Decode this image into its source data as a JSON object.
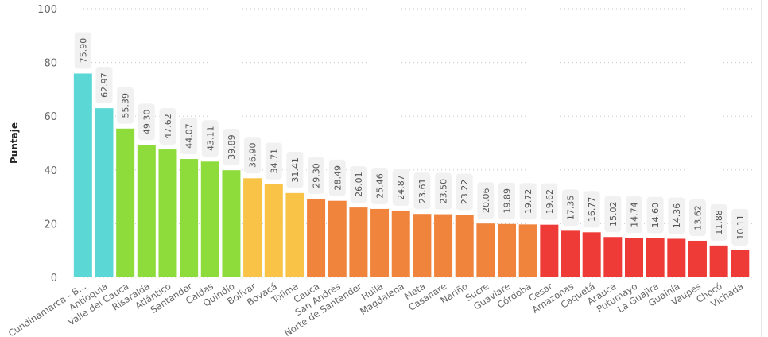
{
  "chart_data": {
    "type": "bar",
    "title": "",
    "xlabel": "",
    "ylabel": "Puntaje",
    "ylim": [
      0,
      100
    ],
    "yticks": [
      0,
      20,
      40,
      60,
      80,
      100
    ],
    "grid": true,
    "categories": [
      "Cundinamarca - B...",
      "Antioquia",
      "Valle del Cauca",
      "Risaralda",
      "Atlántico",
      "Santander",
      "Caldas",
      "Quindío",
      "Bolívar",
      "Boyacá",
      "Tolima",
      "Cauca",
      "San Andrés",
      "Norte de Santander",
      "Huila",
      "Magdalena",
      "Meta",
      "Casanare",
      "Nariño",
      "Sucre",
      "Guaviare",
      "Córdoba",
      "Cesar",
      "Amazonas",
      "Caquetá",
      "Arauca",
      "Putumayo",
      "La Guajira",
      "Guainía",
      "Vaupés",
      "Chocó",
      "Vichada"
    ],
    "values": [
      75.9,
      62.97,
      55.39,
      49.3,
      47.62,
      44.07,
      43.11,
      39.89,
      36.9,
      34.71,
      31.41,
      29.3,
      28.49,
      26.01,
      25.46,
      24.87,
      23.61,
      23.5,
      23.22,
      20.06,
      19.89,
      19.72,
      19.62,
      17.35,
      16.77,
      15.02,
      14.74,
      14.6,
      14.36,
      13.62,
      11.88,
      10.11
    ],
    "data_labels": [
      "75.90",
      "62.97",
      "55.39",
      "49.30",
      "47.62",
      "44.07",
      "43.11",
      "39.89",
      "36.90",
      "34.71",
      "31.41",
      "29.30",
      "28.49",
      "26.01",
      "25.46",
      "24.87",
      "23.61",
      "23.50",
      "23.22",
      "20.06",
      "19.89",
      "19.72",
      "19.62",
      "17.35",
      "16.77",
      "15.02",
      "14.74",
      "14.60",
      "14.36",
      "13.62",
      "11.88",
      "10.11"
    ],
    "color_groups": [
      {
        "color": "#5BD8D6",
        "count": 2
      },
      {
        "color": "#8EDC3C",
        "count": 6
      },
      {
        "color": "#F8C347",
        "count": 3
      },
      {
        "color": "#F0843C",
        "count": 11
      },
      {
        "color": "#EE3B37",
        "count": 10
      }
    ]
  }
}
